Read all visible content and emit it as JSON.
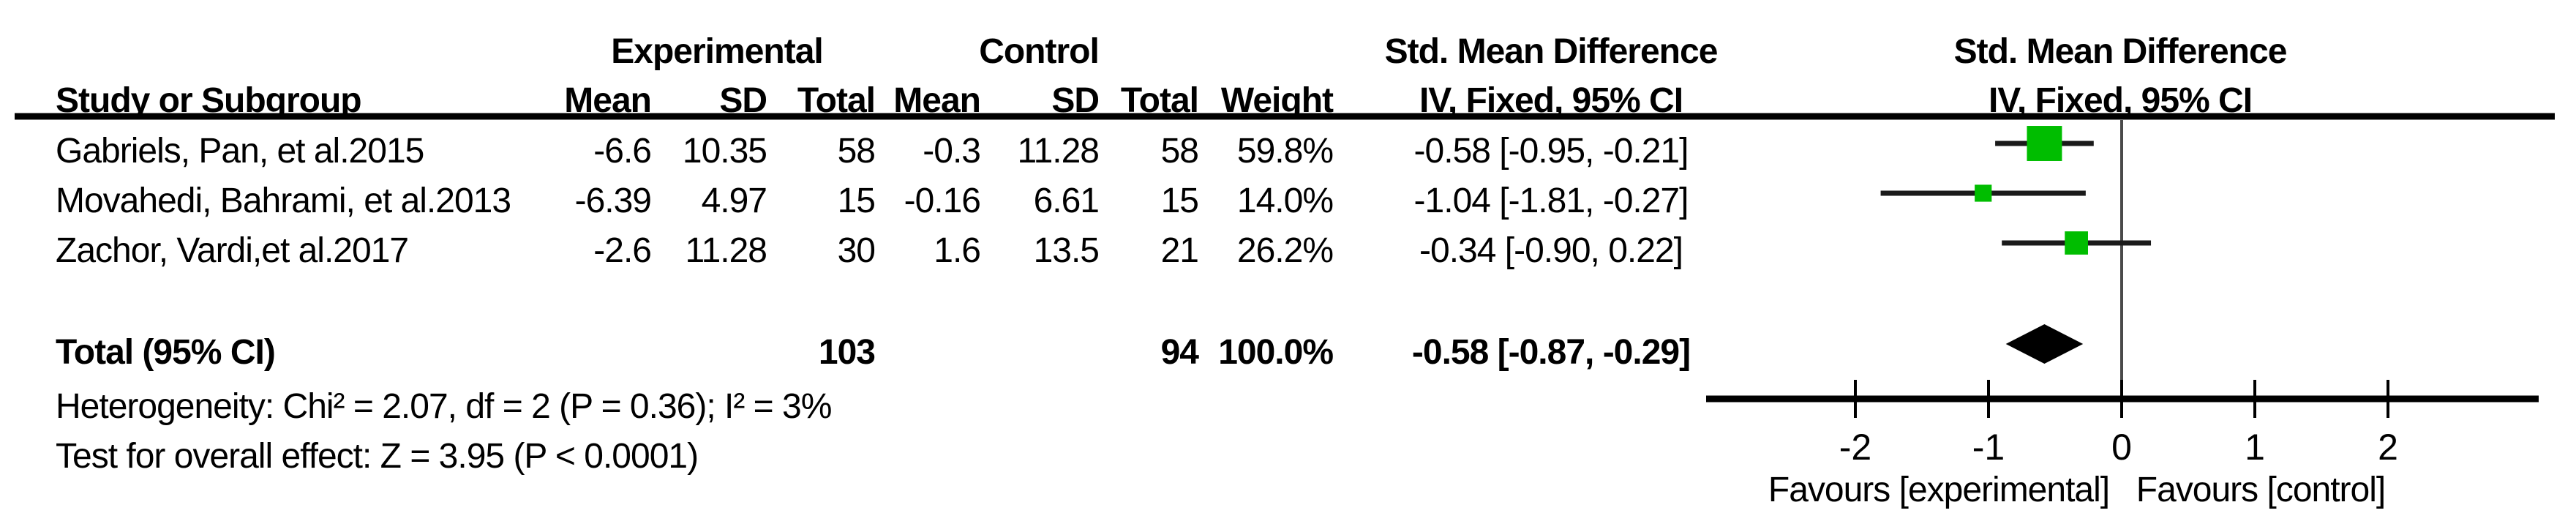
{
  "table": {
    "group_headers": {
      "experimental": "Experimental",
      "control": "Control",
      "smd_table": "Std. Mean Difference",
      "smd_plot": "Std. Mean Difference"
    },
    "column_headers": {
      "study": "Study or Subgroup",
      "mean_exp": "Mean",
      "sd_exp": "SD",
      "total_exp": "Total",
      "mean_ctl": "Mean",
      "sd_ctl": "SD",
      "total_ctl": "Total",
      "weight": "Weight",
      "iv_table": "IV, Fixed, 95% CI",
      "iv_plot": "IV, Fixed, 95% CI"
    },
    "rows": [
      {
        "study": "Gabriels, Pan, et al.2015",
        "mean_exp": "-6.6",
        "sd_exp": "10.35",
        "total_exp": "58",
        "mean_ctl": "-0.3",
        "sd_ctl": "11.28",
        "total_ctl": "58",
        "weight": "59.8%",
        "ci": "-0.58 [-0.95, -0.21]"
      },
      {
        "study": "Movahedi, Bahrami, et al.2013",
        "mean_exp": "-6.39",
        "sd_exp": "4.97",
        "total_exp": "15",
        "mean_ctl": "-0.16",
        "sd_ctl": "6.61",
        "total_ctl": "15",
        "weight": "14.0%",
        "ci": "-1.04 [-1.81, -0.27]"
      },
      {
        "study": "Zachor, Vardi,et al.2017",
        "mean_exp": "-2.6",
        "sd_exp": "11.28",
        "total_exp": "30",
        "mean_ctl": "1.6",
        "sd_ctl": "13.5",
        "total_ctl": "21",
        "weight": "26.2%",
        "ci": "-0.34 [-0.90, 0.22]"
      }
    ],
    "total_row": {
      "label": "Total (95% CI)",
      "total_exp": "103",
      "total_ctl": "94",
      "weight": "100.0%",
      "ci": "-0.58 [-0.87, -0.29]"
    },
    "footer": {
      "heterogeneity": "Heterogeneity: Chi² = 2.07, df = 2 (P = 0.36); I² = 3%",
      "overall_effect": "Test for overall effect: Z = 3.95 (P < 0.0001)"
    }
  },
  "chart_data": {
    "type": "forest",
    "effect_measure": "Std. Mean Difference, IV, Fixed, 95% CI",
    "studies": [
      {
        "name": "Gabriels, Pan, et al.2015",
        "estimate": -0.58,
        "ci_low": -0.95,
        "ci_high": -0.21,
        "weight_pct": 59.8
      },
      {
        "name": "Movahedi, Bahrami, et al.2013",
        "estimate": -1.04,
        "ci_low": -1.81,
        "ci_high": -0.27,
        "weight_pct": 14.0
      },
      {
        "name": "Zachor, Vardi,et al.2017",
        "estimate": -0.34,
        "ci_low": -0.9,
        "ci_high": 0.22,
        "weight_pct": 26.2
      }
    ],
    "total": {
      "estimate": -0.58,
      "ci_low": -0.87,
      "ci_high": -0.29,
      "weight_pct": 100.0
    },
    "heterogeneity": {
      "chi2": 2.07,
      "df": 2,
      "p": 0.36,
      "i2_pct": 3
    },
    "overall_effect": {
      "z": 3.95,
      "p": "< 0.0001"
    },
    "x_ticks": [
      -2,
      -1,
      0,
      1,
      2
    ],
    "x_axis_range": [
      -3.1,
      3.1
    ],
    "zero_line": 0,
    "favours_left": "Favours [experimental]",
    "favours_right": "Favours [control]",
    "marker_color": "#00BD00",
    "ci_line_color": "#1a1a1a",
    "diamond_color": "#000000"
  }
}
